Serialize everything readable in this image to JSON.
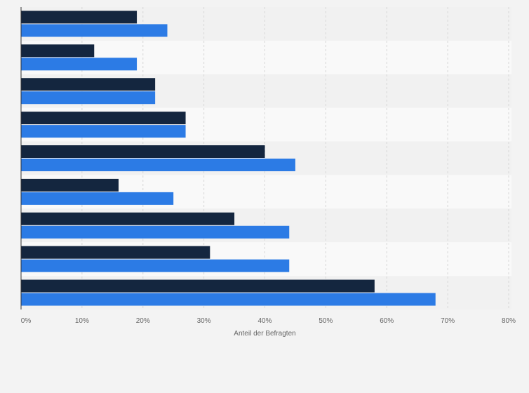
{
  "chart_data": {
    "type": "bar",
    "orientation": "horizontal",
    "categories": [
      "",
      "",
      "",
      "",
      "",
      "",
      "",
      "",
      ""
    ],
    "series": [
      {
        "values": [
          19,
          12,
          22,
          27,
          40,
          16,
          35,
          31,
          58
        ],
        "color": "#14263f"
      },
      {
        "values": [
          24,
          19,
          22,
          27,
          45,
          25,
          44,
          44,
          68
        ],
        "color": "#2c7be5"
      }
    ],
    "title": "",
    "xlabel": "Anteil der Befragten",
    "ylabel": "",
    "xlim": [
      0,
      80
    ],
    "xticks": [
      "0%",
      "10%",
      "20%",
      "30%",
      "40%",
      "50%",
      "60%",
      "70%",
      "80%"
    ],
    "grid": "vertical dashed",
    "legend": "none",
    "colors": {
      "background": "#f3f3f3",
      "band_dark": "#f1f1f1",
      "band_light": "#f9f9f9",
      "grid": "#d8d8d8",
      "text": "#666666"
    }
  }
}
